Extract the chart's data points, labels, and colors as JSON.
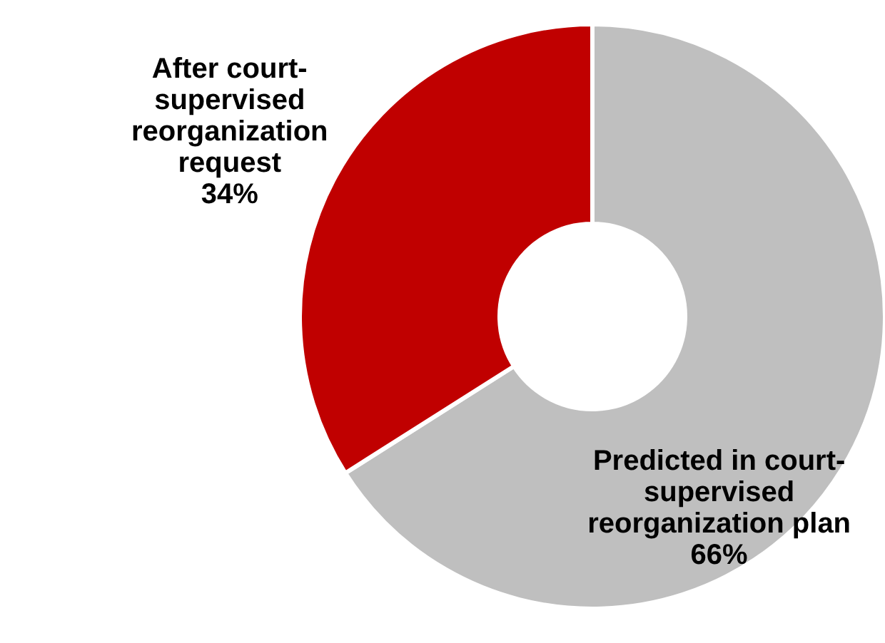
{
  "chart_data": {
    "type": "donut",
    "categories": [
      "Predicted in court-supervised reorganization plan",
      "After court-supervised reorganization request"
    ],
    "values": [
      66,
      34
    ],
    "colors": [
      "#bfbfbf",
      "#c00000"
    ],
    "value_labels": [
      "66%",
      "34%"
    ]
  }
}
